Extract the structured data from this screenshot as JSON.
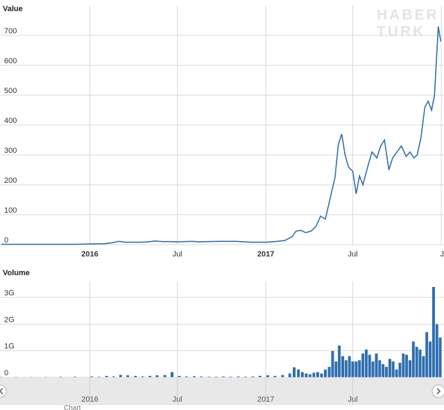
{
  "watermark": [
    "HABER",
    "TURK"
  ],
  "credit": "Chart",
  "chart_data": [
    {
      "type": "line",
      "title": "",
      "ylabel": "Value",
      "xlabel": "",
      "ylim": [
        0,
        800
      ],
      "yticks": [
        "0",
        "100",
        "200",
        "300",
        "400",
        "500",
        "600",
        "700"
      ],
      "xrange": [
        "2015-07-01",
        "2018-01-01"
      ],
      "xticks": [
        {
          "date": "2016-01-01",
          "label": "2016",
          "bold": true
        },
        {
          "date": "2016-07-01",
          "label": "Jul",
          "bold": false
        },
        {
          "date": "2017-01-01",
          "label": "2017",
          "bold": true
        },
        {
          "date": "2017-07-01",
          "label": "Jul",
          "bold": false
        },
        {
          "date": "2018-01-01",
          "label": "J",
          "bold": false
        }
      ],
      "grid": true,
      "color": "#2f6fb0",
      "x": [
        "2015-07-01",
        "2015-08-01",
        "2015-09-01",
        "2015-10-01",
        "2015-11-01",
        "2015-12-01",
        "2016-01-01",
        "2016-02-01",
        "2016-02-15",
        "2016-03-01",
        "2016-03-15",
        "2016-04-01",
        "2016-04-15",
        "2016-05-01",
        "2016-05-15",
        "2016-06-01",
        "2016-06-15",
        "2016-07-01",
        "2016-07-15",
        "2016-08-01",
        "2016-08-15",
        "2016-09-01",
        "2016-10-01",
        "2016-11-01",
        "2016-12-01",
        "2017-01-01",
        "2017-01-20",
        "2017-02-10",
        "2017-02-25",
        "2017-03-05",
        "2017-03-15",
        "2017-03-25",
        "2017-04-05",
        "2017-04-15",
        "2017-04-25",
        "2017-05-05",
        "2017-05-15",
        "2017-05-25",
        "2017-06-01",
        "2017-06-08",
        "2017-06-15",
        "2017-06-22",
        "2017-07-01",
        "2017-07-08",
        "2017-07-15",
        "2017-07-22",
        "2017-08-01",
        "2017-08-10",
        "2017-08-20",
        "2017-08-28",
        "2017-09-05",
        "2017-09-14",
        "2017-09-22",
        "2017-10-01",
        "2017-10-10",
        "2017-10-20",
        "2017-10-28",
        "2017-11-05",
        "2017-11-12",
        "2017-11-20",
        "2017-11-28",
        "2017-12-05",
        "2017-12-12",
        "2017-12-18",
        "2017-12-22",
        "2017-12-26",
        "2017-12-31"
      ],
      "y": [
        1,
        1,
        1,
        1,
        1,
        1,
        2,
        3,
        6,
        11,
        8,
        8,
        8,
        9,
        12,
        10,
        10,
        9,
        10,
        11,
        9,
        10,
        11,
        11,
        8,
        8,
        10,
        14,
        27,
        45,
        48,
        40,
        45,
        60,
        95,
        85,
        155,
        225,
        335,
        370,
        300,
        260,
        245,
        170,
        230,
        200,
        260,
        310,
        290,
        330,
        350,
        250,
        290,
        310,
        330,
        295,
        310,
        290,
        300,
        360,
        460,
        480,
        450,
        500,
        620,
        730,
        680
      ]
    },
    {
      "type": "bar",
      "title": "",
      "ylabel": "Volume",
      "xlabel": "",
      "ylim": [
        0,
        3600000000
      ],
      "yticks": [
        "0",
        "1G",
        "2G",
        "3G"
      ],
      "xrange": [
        "2015-07-01",
        "2018-01-01"
      ],
      "xticks": [
        {
          "date": "2016-01-01",
          "label": "2016",
          "bold": true
        },
        {
          "date": "2016-07-01",
          "label": "Jul",
          "bold": false
        },
        {
          "date": "2017-01-01",
          "label": "2017",
          "bold": true
        },
        {
          "date": "2017-07-01",
          "label": "Jul",
          "bold": false
        }
      ],
      "grid": true,
      "color": "#2f6fb0",
      "x": [
        "2015-07-01",
        "2015-08-01",
        "2015-09-01",
        "2015-10-01",
        "2015-11-01",
        "2015-12-01",
        "2016-01-05",
        "2016-01-20",
        "2016-02-05",
        "2016-02-20",
        "2016-03-05",
        "2016-03-20",
        "2016-04-05",
        "2016-04-20",
        "2016-05-05",
        "2016-05-20",
        "2016-06-05",
        "2016-06-20",
        "2016-07-05",
        "2016-07-20",
        "2016-08-05",
        "2016-08-20",
        "2016-09-05",
        "2016-09-20",
        "2016-10-05",
        "2016-10-20",
        "2016-11-05",
        "2016-11-20",
        "2016-12-05",
        "2016-12-20",
        "2017-01-05",
        "2017-01-20",
        "2017-02-05",
        "2017-02-20",
        "2017-03-01",
        "2017-03-10",
        "2017-03-18",
        "2017-03-26",
        "2017-04-03",
        "2017-04-11",
        "2017-04-19",
        "2017-04-27",
        "2017-05-05",
        "2017-05-13",
        "2017-05-20",
        "2017-05-27",
        "2017-06-03",
        "2017-06-10",
        "2017-06-17",
        "2017-06-24",
        "2017-07-01",
        "2017-07-08",
        "2017-07-15",
        "2017-07-22",
        "2017-07-29",
        "2017-08-05",
        "2017-08-12",
        "2017-08-19",
        "2017-08-26",
        "2017-09-02",
        "2017-09-09",
        "2017-09-16",
        "2017-09-23",
        "2017-09-30",
        "2017-10-07",
        "2017-10-14",
        "2017-10-21",
        "2017-10-28",
        "2017-11-04",
        "2017-11-11",
        "2017-11-18",
        "2017-11-25",
        "2017-12-02",
        "2017-12-09",
        "2017-12-16",
        "2017-12-23",
        "2017-12-30"
      ],
      "values": [
        20000000,
        20000000,
        20000000,
        20000000,
        25000000,
        30000000,
        40000000,
        30000000,
        60000000,
        40000000,
        100000000,
        80000000,
        60000000,
        40000000,
        60000000,
        80000000,
        90000000,
        200000000,
        60000000,
        40000000,
        50000000,
        40000000,
        30000000,
        30000000,
        40000000,
        30000000,
        40000000,
        30000000,
        40000000,
        60000000,
        80000000,
        60000000,
        90000000,
        150000000,
        380000000,
        300000000,
        200000000,
        150000000,
        120000000,
        180000000,
        200000000,
        150000000,
        300000000,
        400000000,
        1000000000,
        600000000,
        1200000000,
        800000000,
        650000000,
        800000000,
        600000000,
        600000000,
        650000000,
        900000000,
        1050000000,
        850000000,
        600000000,
        900000000,
        650000000,
        500000000,
        400000000,
        700000000,
        600000000,
        300000000,
        550000000,
        900000000,
        850000000,
        650000000,
        1350000000,
        1150000000,
        1050000000,
        800000000,
        1700000000,
        1350000000,
        3400000000,
        2000000000,
        1500000000
      ]
    }
  ],
  "navigator": {
    "ticks": [
      {
        "date": "2016-01-01",
        "label": "2016"
      },
      {
        "date": "2016-07-01",
        "label": "Jul"
      },
      {
        "date": "2017-01-01",
        "label": "2017"
      },
      {
        "date": "2017-07-01",
        "label": "Jul"
      }
    ]
  }
}
